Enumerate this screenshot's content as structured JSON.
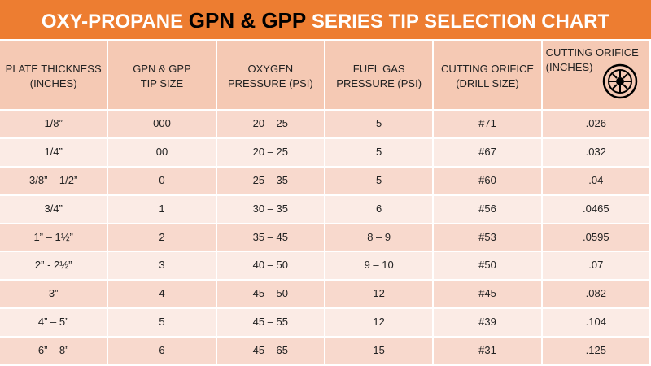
{
  "title": {
    "prefix": "OXY-PROPANE",
    "highlight": "GPN & GPP",
    "suffix": "SERIES TIP SELECTION CHART"
  },
  "table": {
    "headers": [
      [
        "PLATE THICKNESS",
        "(INCHES)"
      ],
      [
        "GPN & GPP",
        "TIP SIZE"
      ],
      [
        "OXYGEN",
        "PRESSURE (PSI)"
      ],
      [
        "FUEL GAS",
        "PRESSURE (PSI)"
      ],
      [
        "CUTTING ORIFICE",
        "(DRILL SIZE)"
      ],
      [
        "CUTTING ORIFICE",
        "(INCHES)"
      ]
    ],
    "rows": [
      [
        "1/8”",
        "000",
        "20 – 25",
        "5",
        "#71",
        ".026"
      ],
      [
        "1/4”",
        "00",
        "20 – 25",
        "5",
        "#67",
        ".032"
      ],
      [
        "3/8” – 1/2”",
        "0",
        "25 – 35",
        "5",
        "#60",
        ".04"
      ],
      [
        "3/4”",
        "1",
        "30 – 35",
        "6",
        "#56",
        ".0465"
      ],
      [
        "1” – 1½”",
        "2",
        "35 – 45",
        "8 – 9",
        "#53",
        ".0595"
      ],
      [
        "2” - 2½”",
        "3",
        "40 – 50",
        "9 – 10",
        "#50",
        ".07"
      ],
      [
        "3”",
        "4",
        "45 – 50",
        "12",
        "#45",
        ".082"
      ],
      [
        "4” – 5”",
        "5",
        "45 – 55",
        "12",
        "#39",
        ".104"
      ],
      [
        "6” – 8”",
        "6",
        "45 – 65",
        "15",
        "#31",
        ".125"
      ]
    ]
  }
}
